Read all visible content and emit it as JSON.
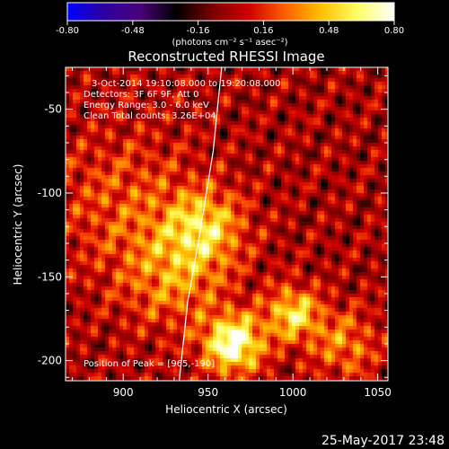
{
  "chart_data": {
    "type": "heatmap",
    "title": "Reconstructed RHESSI Image",
    "xlabel": "Heliocentric X (arcsec)",
    "ylabel": "Heliocentric Y (arcsec)",
    "xlim": [
      866,
      1056
    ],
    "ylim": [
      -212,
      -25
    ],
    "x_ticks": [
      900,
      950,
      1000,
      1050
    ],
    "y_ticks": [
      -200,
      -150,
      -100,
      -50
    ],
    "colorbar": {
      "range": [
        -0.8,
        0.8
      ],
      "ticks": [
        -0.8,
        -0.48,
        -0.16,
        0.16,
        0.48,
        0.8
      ],
      "tick_labels": [
        "-0.80",
        "-0.48",
        "-0.16",
        "0.16",
        "0.48",
        "0.80"
      ],
      "unit_label": "(photons cm⁻² s⁻¹ asec⁻²)",
      "colors": [
        "#0000ff",
        "#2a00a0",
        "#4a007a",
        "#000000",
        "#7a0000",
        "#d00000",
        "#ff6000",
        "#ffc000",
        "#ffff66",
        "#ffffff"
      ]
    },
    "annotations": {
      "time": "3-Oct-2014 19:10:08.000 to 19:20:08.000",
      "detectors": "Detectors: 3F 6F 9F, Att 0",
      "energy": "Energy Range: 3.0 - 6.0 keV",
      "clean": "Clean    Total counts: 3.26E+04",
      "peak": "Position of Peak = [965,-190]"
    },
    "peak": [
      965,
      -190
    ],
    "sources": [
      {
        "x": 965,
        "y": -190,
        "amp": 0.78,
        "sigma": 12
      },
      {
        "x": 1000,
        "y": -172,
        "amp": 0.55,
        "sigma": 11
      },
      {
        "x": 948,
        "y": -120,
        "amp": 0.45,
        "sigma": 16
      },
      {
        "x": 930,
        "y": -150,
        "amp": 0.32,
        "sigma": 22
      },
      {
        "x": 1030,
        "y": -190,
        "amp": 0.32,
        "sigma": 14
      },
      {
        "x": 900,
        "y": -105,
        "amp": 0.22,
        "sigma": 30
      }
    ],
    "limb": [
      [
        958,
        -25
      ],
      [
        953,
        -75
      ],
      [
        945,
        -125
      ],
      [
        938,
        -165
      ],
      [
        933,
        -212
      ]
    ]
  },
  "footer": {
    "date": "25-May-2017 23:48"
  }
}
